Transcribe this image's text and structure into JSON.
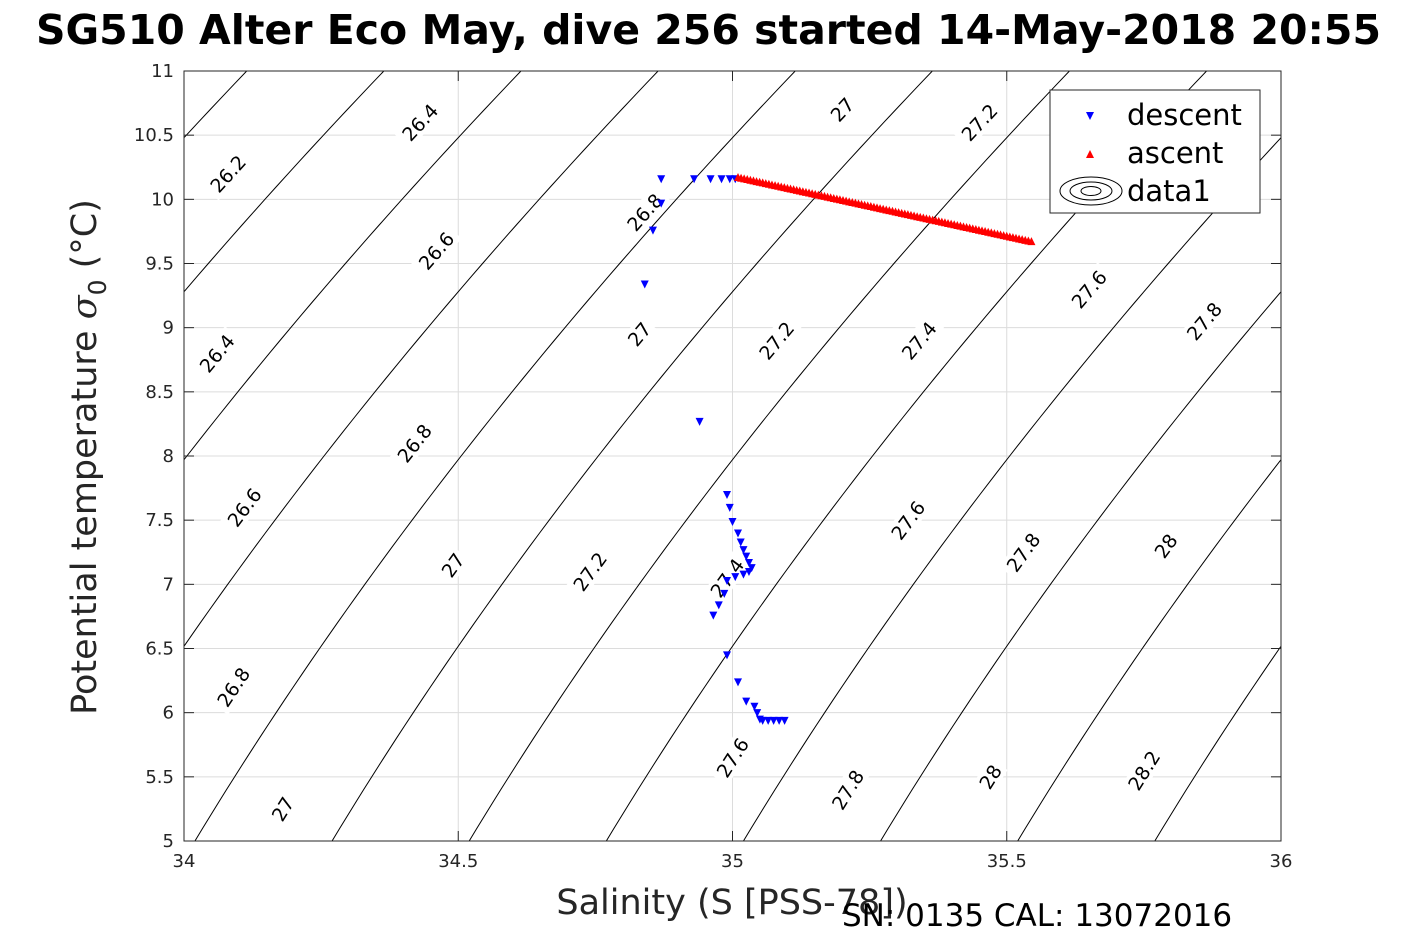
{
  "chart_data": {
    "type": "scatter",
    "title": "SG510 Alter Eco May, dive 256 started 14-May-2018 20:55",
    "xlabel": "Salinity (S [PSS-78])",
    "ylabel_main": "Potential temperature ",
    "ylabel_sym": "σ",
    "ylabel_sub": "0",
    "ylabel_unit": " (°C)",
    "xlim": [
      34,
      36
    ],
    "ylim": [
      5,
      11
    ],
    "xticks": [
      "34",
      "34.5",
      "35",
      "35.5",
      "36"
    ],
    "yticks": [
      "5",
      "5.5",
      "6",
      "6.5",
      "7",
      "7.5",
      "8",
      "8.5",
      "9",
      "9.5",
      "10",
      "10.5",
      "11"
    ],
    "grid": true,
    "legend": {
      "position": "top-right",
      "entries": [
        "descent",
        "ascent",
        "data1"
      ]
    },
    "series": [
      {
        "name": "descent",
        "color": "#0000ff",
        "marker": "triangle-down",
        "points": [
          [
            34.93,
            10.16
          ],
          [
            34.96,
            10.16
          ],
          [
            34.98,
            10.16
          ],
          [
            34.995,
            10.16
          ],
          [
            35.005,
            10.16
          ],
          [
            34.87,
            10.16
          ],
          [
            34.87,
            9.97
          ],
          [
            34.855,
            9.76
          ],
          [
            34.84,
            9.34
          ],
          [
            34.94,
            8.27
          ],
          [
            34.99,
            7.7
          ],
          [
            34.995,
            7.6
          ],
          [
            35.0,
            7.49
          ],
          [
            35.01,
            7.4
          ],
          [
            35.015,
            7.33
          ],
          [
            35.02,
            7.27
          ],
          [
            35.025,
            7.22
          ],
          [
            35.03,
            7.17
          ],
          [
            35.035,
            7.13
          ],
          [
            35.03,
            7.1
          ],
          [
            35.02,
            7.08
          ],
          [
            35.005,
            7.06
          ],
          [
            34.99,
            7.03
          ],
          [
            34.985,
            6.93
          ],
          [
            34.975,
            6.84
          ],
          [
            34.965,
            6.76
          ],
          [
            34.99,
            6.45
          ],
          [
            35.01,
            6.24
          ],
          [
            35.025,
            6.09
          ],
          [
            35.04,
            6.05
          ],
          [
            35.045,
            6.0
          ],
          [
            35.05,
            5.95
          ],
          [
            35.055,
            5.94
          ],
          [
            35.065,
            5.94
          ],
          [
            35.075,
            5.94
          ],
          [
            35.085,
            5.94
          ],
          [
            35.095,
            5.94
          ]
        ]
      },
      {
        "name": "ascent",
        "color": "#ff0000",
        "marker": "triangle-up",
        "start": [
          35.01,
          10.17
        ],
        "end": [
          35.545,
          9.67
        ],
        "count": 96
      }
    ],
    "contours": {
      "name": "data1",
      "color": "#000000",
      "levels": [
        {
          "value": 26.2,
          "label": "26.2"
        },
        {
          "value": 26.4,
          "label": "26.4"
        },
        {
          "value": 26.6,
          "label": "26.6"
        },
        {
          "value": 26.8,
          "label": "26.8"
        },
        {
          "value": 27.0,
          "label": "27"
        },
        {
          "value": 27.2,
          "label": "27.2"
        },
        {
          "value": 27.4,
          "label": "27.4"
        },
        {
          "value": 27.6,
          "label": "27.6"
        },
        {
          "value": 27.8,
          "label": "27.8"
        },
        {
          "value": 28.0,
          "label": "28"
        },
        {
          "value": 28.2,
          "label": "28.2"
        }
      ],
      "label_points": [
        {
          "label": "26.2",
          "s": 34.08,
          "t": 10.2
        },
        {
          "label": "26.4",
          "s": 34.43,
          "t": 10.6
        },
        {
          "label": "26.4",
          "s": 34.06,
          "t": 8.8
        },
        {
          "label": "26.6",
          "s": 34.46,
          "t": 9.6
        },
        {
          "label": "26.6",
          "s": 34.11,
          "t": 7.6
        },
        {
          "label": "26.8",
          "s": 34.84,
          "t": 9.9
        },
        {
          "label": "26.8",
          "s": 34.42,
          "t": 8.1
        },
        {
          "label": "26.8",
          "s": 34.09,
          "t": 6.2
        },
        {
          "label": "27",
          "s": 35.2,
          "t": 10.7
        },
        {
          "label": "27",
          "s": 34.83,
          "t": 8.95
        },
        {
          "label": "27",
          "s": 34.49,
          "t": 7.15
        },
        {
          "label": "27",
          "s": 34.18,
          "t": 5.25
        },
        {
          "label": "27.2",
          "s": 35.45,
          "t": 10.6
        },
        {
          "label": "27.2",
          "s": 35.08,
          "t": 8.9
        },
        {
          "label": "27.2",
          "s": 34.74,
          "t": 7.1
        },
        {
          "label": "27.4",
          "s": 35.34,
          "t": 8.9
        },
        {
          "label": "27.4",
          "s": 34.99,
          "t": 7.05
        },
        {
          "label": "27.6",
          "s": 35.65,
          "t": 9.3
        },
        {
          "label": "27.6",
          "s": 35.32,
          "t": 7.5
        },
        {
          "label": "27.6",
          "s": 35.0,
          "t": 5.65
        },
        {
          "label": "27.8",
          "s": 35.86,
          "t": 9.05
        },
        {
          "label": "27.8",
          "s": 35.53,
          "t": 7.25
        },
        {
          "label": "27.8",
          "s": 35.21,
          "t": 5.4
        },
        {
          "label": "28",
          "s": 35.79,
          "t": 7.3
        },
        {
          "label": "28",
          "s": 35.47,
          "t": 5.5
        },
        {
          "label": "28.2",
          "s": 35.75,
          "t": 5.55
        }
      ]
    }
  },
  "footer": {
    "text": "SN: 0135  CAL: 13072016"
  }
}
